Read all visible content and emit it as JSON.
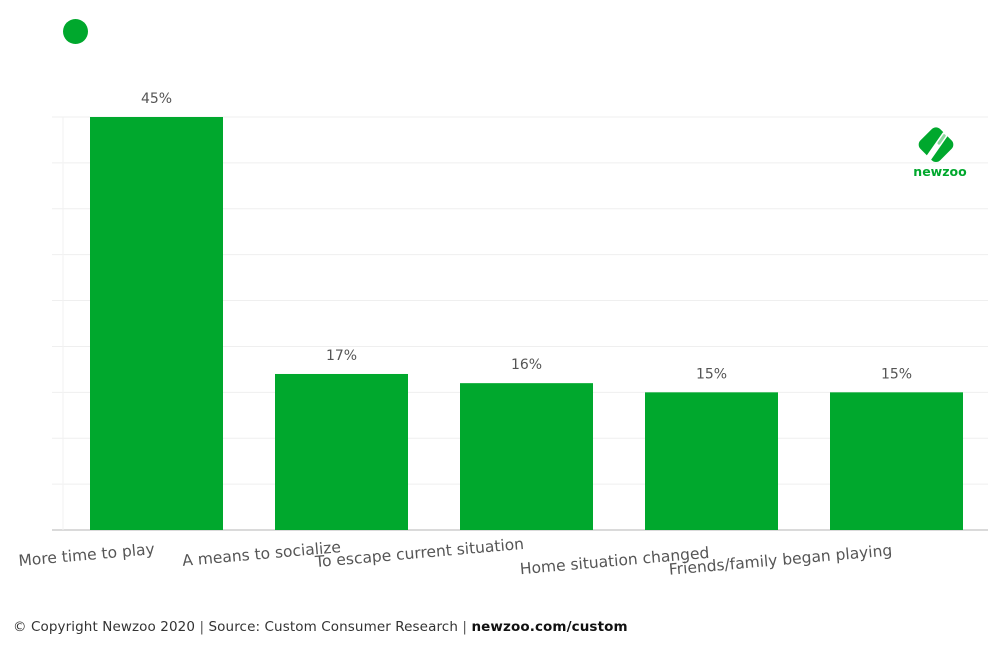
{
  "legend": {
    "color": "#00a82d"
  },
  "logo": {
    "text": "newzoo",
    "icon": "newzoo-logo-icon"
  },
  "footer": {
    "copyright": "© Copyright Newzoo 2020",
    "separator": "|",
    "source": "Source: Custom Consumer Research",
    "link": "newzoo.com/custom"
  },
  "chart_data": {
    "type": "bar",
    "categories": [
      "More time to play",
      "A means to socialize",
      "To escape current situation",
      "Home situation changed",
      "Friends/family began playing"
    ],
    "values": [
      45,
      17,
      16,
      15,
      15
    ],
    "value_labels": [
      "45%",
      "17%",
      "16%",
      "15%",
      "15%"
    ],
    "ylim": [
      0,
      45
    ],
    "grid": true,
    "bar_color": "#00a82d"
  }
}
